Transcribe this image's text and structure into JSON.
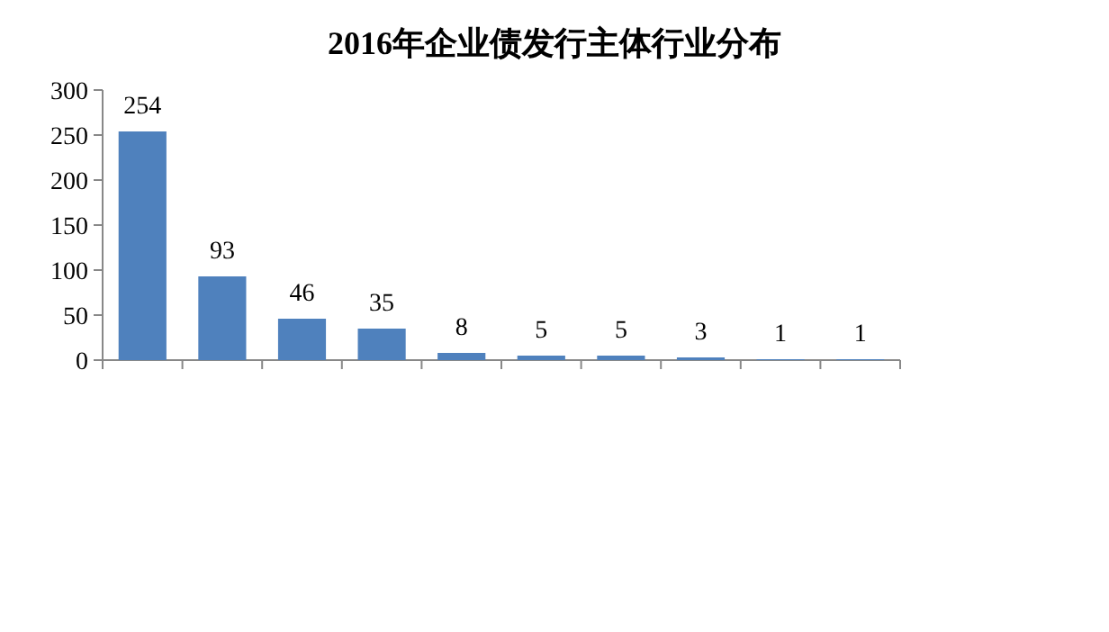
{
  "chart_data": {
    "type": "bar",
    "title": "2016年企业债发行主体行业分布",
    "categories": [
      null,
      null,
      null,
      null,
      null,
      null,
      null,
      null,
      null,
      null
    ],
    "values": [
      254,
      93,
      46,
      35,
      8,
      5,
      5,
      3,
      1,
      1
    ],
    "color": "#4f81bd",
    "ylim": [
      0,
      300
    ],
    "yticks": [
      0,
      50,
      100,
      150,
      200,
      250,
      300
    ],
    "data_labels": true,
    "grid": false
  }
}
